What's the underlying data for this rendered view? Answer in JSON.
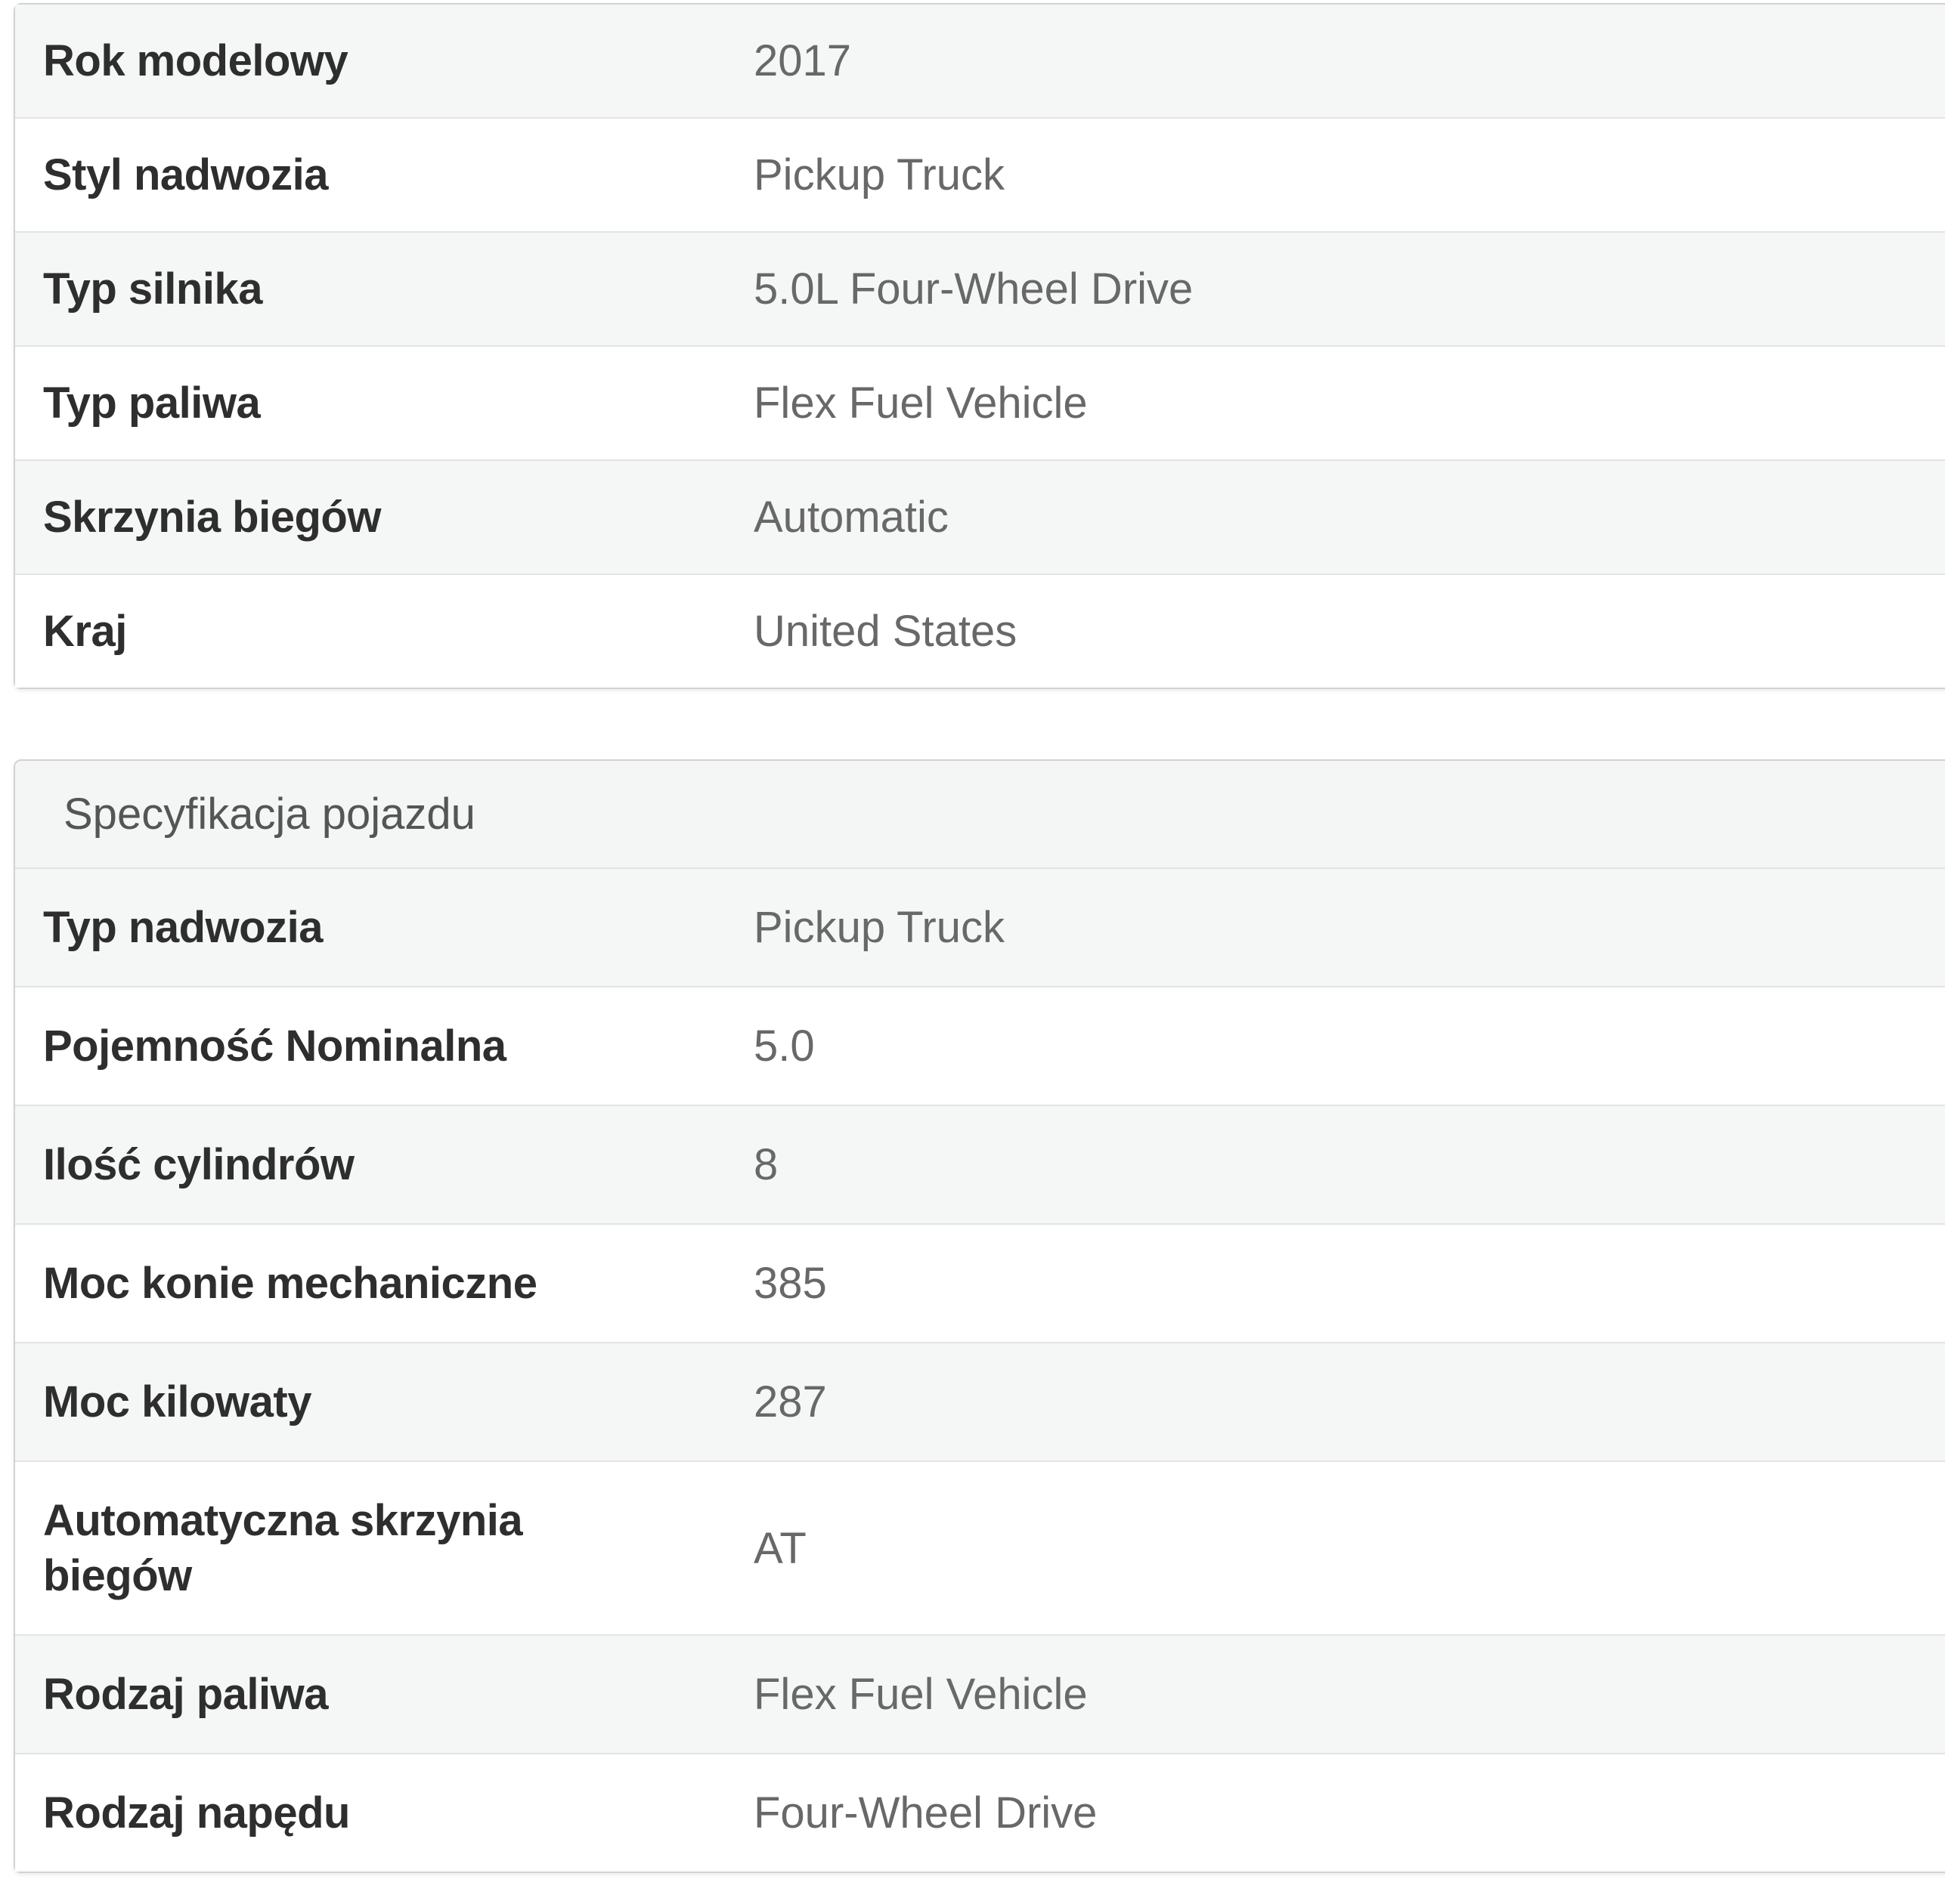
{
  "colors": {
    "page_background": "#ffffff",
    "stripe_row_background": "#f5f6f6",
    "heading_background": "#f4f5f5",
    "panel_border": "#d2d2d2",
    "row_divider": "#e3e3e3",
    "label_text": "#2e2e2e",
    "value_text": "#686868",
    "heading_text": "#555555"
  },
  "summary_table": {
    "rows": [
      {
        "label": "Rok modelowy",
        "value": "2017"
      },
      {
        "label": "Styl nadwozia",
        "value": "Pickup Truck"
      },
      {
        "label": "Typ silnika",
        "value": "5.0L Four-Wheel Drive"
      },
      {
        "label": "Typ paliwa",
        "value": "Flex Fuel Vehicle"
      },
      {
        "label": "Skrzynia biegów",
        "value": "Automatic"
      },
      {
        "label": "Kraj",
        "value": "United States"
      }
    ]
  },
  "spec_table": {
    "title": "Specyfikacja pojazdu",
    "rows": [
      {
        "label": "Typ nadwozia",
        "value": "Pickup Truck"
      },
      {
        "label": "Pojemność Nominalna",
        "value": "5.0"
      },
      {
        "label": "Ilość cylindrów",
        "value": "8"
      },
      {
        "label": "Moc konie mechaniczne",
        "value": "385"
      },
      {
        "label": "Moc kilowaty",
        "value": "287"
      },
      {
        "label": "Automatyczna skrzynia biegów",
        "value": "AT"
      },
      {
        "label": "Rodzaj paliwa",
        "value": "Flex Fuel Vehicle"
      },
      {
        "label": "Rodzaj napędu",
        "value": "Four-Wheel Drive"
      }
    ]
  }
}
